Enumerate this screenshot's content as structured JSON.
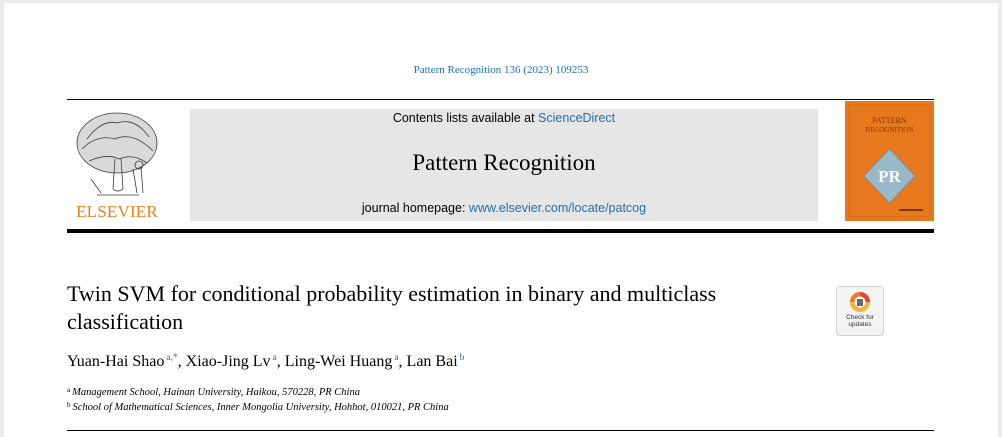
{
  "citation": "Pattern Recognition 136 (2023) 109253",
  "banner": {
    "contents_prefix": "Contents lists available at ",
    "contents_link": "ScienceDirect",
    "journal_title": "Pattern Recognition",
    "homepage_prefix": "journal homepage: ",
    "homepage_link": "www.elsevier.com/locate/patcog"
  },
  "publisher_logo": "ELSEVIER",
  "cover": {
    "title_line1": "PATTERN",
    "title_line2": "RECOGNITION",
    "monogram": "PR"
  },
  "check_updates": {
    "line1": "Check for",
    "line2": "updates"
  },
  "article_title": "Twin SVM for conditional probability estimation in binary and multiclass classification",
  "authors": [
    {
      "name": "Yuan-Hai Shao",
      "mark": "a,*",
      "sep": ", "
    },
    {
      "name": "Xiao-Jing Lv",
      "mark": "a",
      "sep": ", "
    },
    {
      "name": "Ling-Wei Huang",
      "mark": "a",
      "sep": ", "
    },
    {
      "name": "Lan Bai",
      "mark": "b",
      "sep": ""
    }
  ],
  "affiliations": [
    {
      "mark": "a",
      "text": "Management School, Hainan University, Haikou, 570228, PR China"
    },
    {
      "mark": "b",
      "text": "School of Mathematical Sciences, Inner Mongolia University, Hohhot, 010021, PR China"
    }
  ],
  "colors": {
    "link": "#1f6fb0",
    "elsevier_orange": "#f07d1a",
    "banner_bg": "#e6e6e6",
    "cover_orange": "#e8781e"
  }
}
